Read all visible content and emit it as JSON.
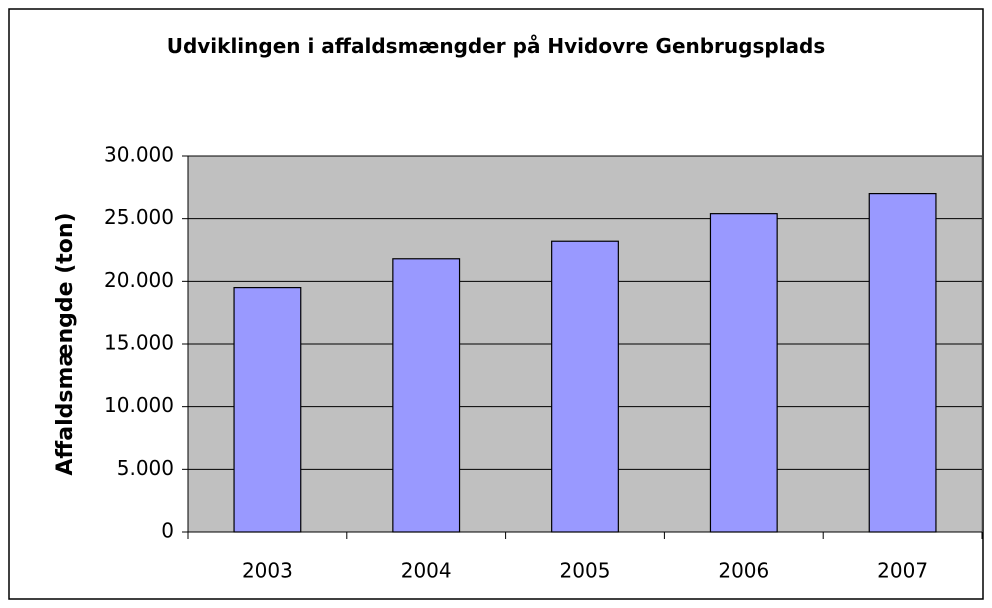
{
  "chart_data": {
    "type": "bar",
    "title": "Udviklingen i affaldsmængder på Hvidovre Genbrugsplads",
    "y_label": "Affaldsmængde (ton)",
    "categories": [
      "2003",
      "2004",
      "2005",
      "2006",
      "2007"
    ],
    "values": [
      19500,
      21800,
      23200,
      25400,
      27000
    ],
    "color": "#9999ff",
    "ylim": [
      0,
      30000
    ],
    "yticks": [
      0,
      {
        "value": 5000,
        "label": "5.000"
      },
      {
        "value": 10000,
        "label": "10.000"
      },
      {
        "value": 15000,
        "label": "15.000"
      },
      {
        "value": 20000,
        "label": "20.000"
      },
      {
        "value": 25000,
        "label": "25.000"
      },
      {
        "value": 30000,
        "label": "30.000"
      }
    ],
    "grid": true
  }
}
